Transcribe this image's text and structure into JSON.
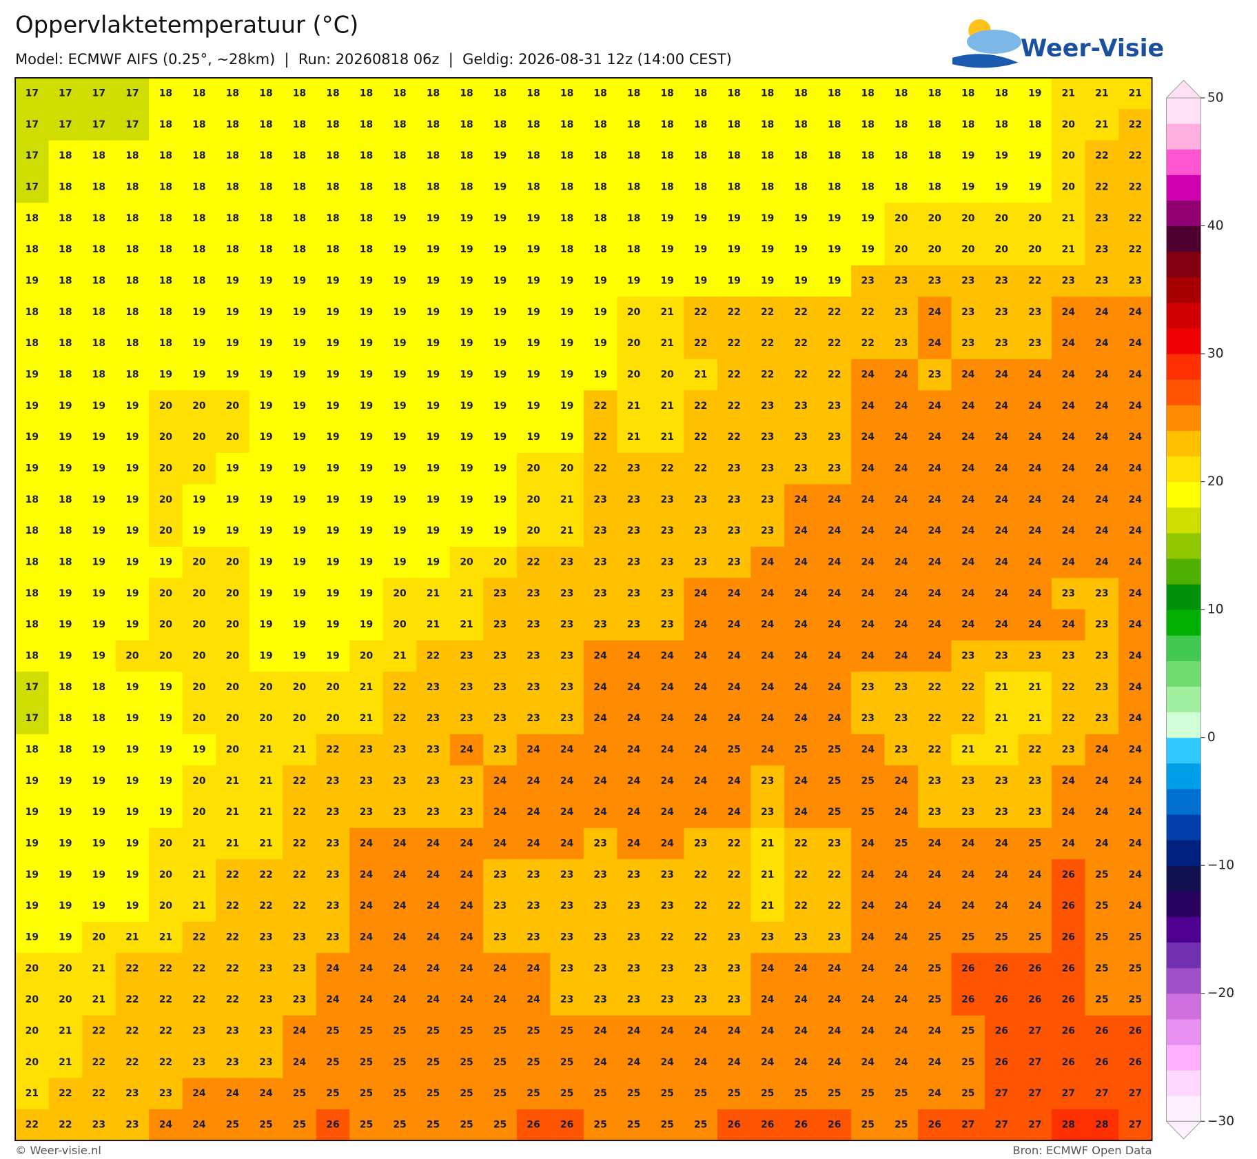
{
  "header": {
    "title": "Oppervlaktetemperatuur (°C)",
    "subtitle": "Model: ECMWF AIFS (0.25°, ~28km)  |  Run: 20260818 06z  |  Geldig: 2026-08-31 12z (14:00 CEST)"
  },
  "logo": {
    "text": "Weer-Visie"
  },
  "map": {
    "grid": [
      [
        17,
        17,
        17,
        17,
        18,
        18,
        18,
        18,
        18,
        18,
        18,
        18,
        18,
        18,
        18,
        18,
        18,
        18,
        18,
        18,
        18,
        18,
        18,
        18,
        18,
        18,
        18,
        18,
        18,
        18,
        19,
        21,
        21,
        21
      ],
      [
        17,
        17,
        17,
        17,
        18,
        18,
        18,
        18,
        18,
        18,
        18,
        18,
        18,
        18,
        18,
        18,
        18,
        18,
        18,
        18,
        18,
        18,
        18,
        18,
        18,
        18,
        18,
        18,
        18,
        18,
        18,
        20,
        21,
        22
      ],
      [
        17,
        18,
        18,
        18,
        18,
        18,
        18,
        18,
        18,
        18,
        18,
        18,
        18,
        18,
        19,
        18,
        18,
        18,
        18,
        18,
        18,
        18,
        18,
        18,
        18,
        18,
        18,
        18,
        19,
        19,
        19,
        20,
        22,
        22
      ],
      [
        17,
        18,
        18,
        18,
        18,
        18,
        18,
        18,
        18,
        18,
        18,
        18,
        18,
        18,
        19,
        18,
        18,
        18,
        18,
        18,
        18,
        18,
        18,
        18,
        18,
        18,
        18,
        18,
        19,
        19,
        19,
        20,
        22,
        22
      ],
      [
        18,
        18,
        18,
        18,
        18,
        18,
        18,
        18,
        18,
        18,
        18,
        19,
        19,
        19,
        19,
        19,
        18,
        18,
        18,
        19,
        19,
        19,
        19,
        19,
        19,
        19,
        20,
        20,
        20,
        20,
        20,
        21,
        23,
        22
      ],
      [
        18,
        18,
        18,
        18,
        18,
        18,
        18,
        18,
        18,
        18,
        18,
        19,
        19,
        19,
        19,
        19,
        18,
        18,
        18,
        19,
        19,
        19,
        19,
        19,
        19,
        19,
        20,
        20,
        20,
        20,
        20,
        21,
        23,
        22
      ],
      [
        19,
        18,
        18,
        18,
        18,
        18,
        19,
        19,
        19,
        19,
        19,
        19,
        19,
        19,
        19,
        19,
        19,
        19,
        19,
        19,
        19,
        19,
        19,
        19,
        19,
        23,
        23,
        23,
        23,
        23,
        22,
        23,
        23,
        23
      ],
      [
        18,
        18,
        18,
        18,
        18,
        19,
        19,
        19,
        19,
        19,
        19,
        19,
        19,
        19,
        19,
        19,
        19,
        19,
        20,
        21,
        22,
        22,
        22,
        22,
        22,
        22,
        23,
        24,
        23,
        23,
        23,
        24,
        24,
        24
      ],
      [
        18,
        18,
        18,
        18,
        18,
        19,
        19,
        19,
        19,
        19,
        19,
        19,
        19,
        19,
        19,
        19,
        19,
        19,
        20,
        21,
        22,
        22,
        22,
        22,
        22,
        22,
        23,
        24,
        23,
        23,
        23,
        24,
        24,
        24
      ],
      [
        19,
        18,
        18,
        18,
        19,
        19,
        19,
        19,
        19,
        19,
        19,
        19,
        19,
        19,
        19,
        19,
        19,
        19,
        20,
        20,
        21,
        22,
        22,
        22,
        22,
        24,
        24,
        23,
        24,
        24,
        24,
        24,
        24,
        24
      ],
      [
        19,
        19,
        19,
        19,
        20,
        20,
        20,
        19,
        19,
        19,
        19,
        19,
        19,
        19,
        19,
        19,
        19,
        22,
        21,
        21,
        22,
        22,
        23,
        23,
        23,
        24,
        24,
        24,
        24,
        24,
        24,
        24,
        24,
        24
      ],
      [
        19,
        19,
        19,
        19,
        20,
        20,
        20,
        19,
        19,
        19,
        19,
        19,
        19,
        19,
        19,
        19,
        19,
        22,
        21,
        21,
        22,
        22,
        23,
        23,
        23,
        24,
        24,
        24,
        24,
        24,
        24,
        24,
        24,
        24
      ],
      [
        19,
        19,
        19,
        19,
        20,
        20,
        19,
        19,
        19,
        19,
        19,
        19,
        19,
        19,
        19,
        20,
        20,
        22,
        23,
        22,
        22,
        23,
        23,
        23,
        23,
        24,
        24,
        24,
        24,
        24,
        24,
        24,
        24,
        24
      ],
      [
        18,
        18,
        19,
        19,
        20,
        19,
        19,
        19,
        19,
        19,
        19,
        19,
        19,
        19,
        19,
        20,
        21,
        23,
        23,
        23,
        23,
        23,
        23,
        24,
        24,
        24,
        24,
        24,
        24,
        24,
        24,
        24,
        24,
        24
      ],
      [
        18,
        18,
        19,
        19,
        20,
        19,
        19,
        19,
        19,
        19,
        19,
        19,
        19,
        19,
        19,
        20,
        21,
        23,
        23,
        23,
        23,
        23,
        23,
        24,
        24,
        24,
        24,
        24,
        24,
        24,
        24,
        24,
        24,
        24
      ],
      [
        18,
        18,
        19,
        19,
        19,
        20,
        20,
        19,
        19,
        19,
        19,
        19,
        19,
        20,
        20,
        22,
        23,
        23,
        23,
        23,
        23,
        23,
        24,
        24,
        24,
        24,
        24,
        24,
        24,
        24,
        24,
        24,
        24,
        24
      ],
      [
        18,
        19,
        19,
        19,
        20,
        20,
        20,
        19,
        19,
        19,
        19,
        20,
        21,
        21,
        23,
        23,
        23,
        23,
        23,
        23,
        24,
        24,
        24,
        24,
        24,
        24,
        24,
        24,
        24,
        24,
        24,
        23,
        23,
        24
      ],
      [
        18,
        19,
        19,
        19,
        20,
        20,
        20,
        19,
        19,
        19,
        19,
        20,
        21,
        21,
        23,
        23,
        23,
        23,
        23,
        23,
        24,
        24,
        24,
        24,
        24,
        24,
        24,
        24,
        24,
        24,
        24,
        24,
        23,
        24
      ],
      [
        18,
        19,
        19,
        20,
        20,
        20,
        20,
        19,
        19,
        19,
        20,
        21,
        22,
        23,
        23,
        23,
        23,
        24,
        24,
        24,
        24,
        24,
        24,
        24,
        24,
        24,
        24,
        24,
        23,
        23,
        23,
        23,
        23,
        24
      ],
      [
        17,
        18,
        18,
        19,
        19,
        20,
        20,
        20,
        20,
        20,
        21,
        22,
        23,
        23,
        23,
        23,
        23,
        24,
        24,
        24,
        24,
        24,
        24,
        24,
        24,
        23,
        23,
        22,
        22,
        21,
        21,
        22,
        23,
        24
      ],
      [
        17,
        18,
        18,
        19,
        19,
        20,
        20,
        20,
        20,
        20,
        21,
        22,
        23,
        23,
        23,
        23,
        23,
        24,
        24,
        24,
        24,
        24,
        24,
        24,
        24,
        23,
        23,
        22,
        22,
        21,
        21,
        22,
        23,
        24
      ],
      [
        18,
        18,
        19,
        19,
        19,
        19,
        20,
        21,
        21,
        22,
        23,
        23,
        23,
        24,
        23,
        24,
        24,
        24,
        24,
        24,
        24,
        25,
        24,
        25,
        25,
        24,
        23,
        22,
        21,
        21,
        22,
        23,
        24,
        24
      ],
      [
        19,
        19,
        19,
        19,
        19,
        20,
        21,
        21,
        22,
        23,
        23,
        23,
        23,
        23,
        24,
        24,
        24,
        24,
        24,
        24,
        24,
        24,
        23,
        24,
        25,
        25,
        24,
        23,
        23,
        23,
        23,
        24,
        24,
        24
      ],
      [
        19,
        19,
        19,
        19,
        19,
        20,
        21,
        21,
        22,
        23,
        23,
        23,
        23,
        23,
        24,
        24,
        24,
        24,
        24,
        24,
        24,
        24,
        23,
        24,
        25,
        25,
        24,
        23,
        23,
        23,
        23,
        24,
        24,
        24
      ],
      [
        19,
        19,
        19,
        19,
        20,
        21,
        21,
        21,
        22,
        23,
        24,
        24,
        24,
        24,
        24,
        24,
        24,
        23,
        24,
        24,
        23,
        22,
        21,
        22,
        23,
        24,
        25,
        24,
        24,
        24,
        25,
        24,
        24,
        24
      ],
      [
        19,
        19,
        19,
        19,
        20,
        21,
        22,
        22,
        22,
        23,
        24,
        24,
        24,
        24,
        23,
        23,
        23,
        23,
        23,
        23,
        22,
        22,
        21,
        22,
        22,
        24,
        24,
        24,
        24,
        24,
        24,
        26,
        25,
        24
      ],
      [
        19,
        19,
        19,
        19,
        20,
        21,
        22,
        22,
        22,
        23,
        24,
        24,
        24,
        24,
        23,
        23,
        23,
        23,
        23,
        23,
        22,
        22,
        21,
        22,
        22,
        24,
        24,
        24,
        24,
        24,
        24,
        26,
        25,
        24
      ],
      [
        19,
        19,
        20,
        21,
        21,
        22,
        22,
        23,
        23,
        23,
        24,
        24,
        24,
        24,
        23,
        23,
        23,
        23,
        23,
        22,
        22,
        23,
        23,
        23,
        23,
        24,
        24,
        25,
        25,
        25,
        25,
        26,
        25,
        25
      ],
      [
        20,
        20,
        21,
        22,
        22,
        22,
        22,
        23,
        23,
        24,
        24,
        24,
        24,
        24,
        24,
        24,
        23,
        23,
        23,
        23,
        23,
        23,
        24,
        24,
        24,
        24,
        24,
        25,
        26,
        26,
        26,
        26,
        25,
        25
      ],
      [
        20,
        20,
        21,
        22,
        22,
        22,
        22,
        23,
        23,
        24,
        24,
        24,
        24,
        24,
        24,
        24,
        23,
        23,
        23,
        23,
        23,
        23,
        24,
        24,
        24,
        24,
        24,
        25,
        26,
        26,
        26,
        26,
        25,
        25
      ],
      [
        20,
        21,
        22,
        22,
        22,
        23,
        23,
        23,
        24,
        25,
        25,
        25,
        25,
        25,
        25,
        25,
        25,
        24,
        24,
        24,
        24,
        24,
        24,
        24,
        24,
        24,
        24,
        24,
        25,
        26,
        27,
        26,
        26,
        26
      ],
      [
        20,
        21,
        22,
        22,
        22,
        23,
        23,
        23,
        24,
        25,
        25,
        25,
        25,
        25,
        25,
        25,
        25,
        24,
        24,
        24,
        24,
        24,
        24,
        24,
        24,
        24,
        24,
        24,
        25,
        26,
        27,
        26,
        26,
        26
      ],
      [
        21,
        22,
        22,
        23,
        23,
        24,
        24,
        24,
        25,
        25,
        25,
        25,
        25,
        25,
        25,
        25,
        25,
        25,
        25,
        25,
        25,
        25,
        25,
        25,
        25,
        25,
        25,
        24,
        25,
        27,
        27,
        27,
        27,
        27
      ],
      [
        22,
        22,
        23,
        23,
        24,
        24,
        25,
        25,
        25,
        26,
        25,
        25,
        25,
        25,
        25,
        26,
        26,
        25,
        25,
        25,
        25,
        26,
        26,
        26,
        26,
        25,
        25,
        26,
        27,
        27,
        27,
        28,
        28,
        27
      ]
    ]
  },
  "colorbar": {
    "lim": [
      -30,
      50
    ],
    "ticks": [
      50,
      40,
      30,
      20,
      10,
      0,
      {
        "value": -10,
        "label": "−10"
      },
      {
        "value": -20,
        "label": "−20"
      },
      {
        "value": -30,
        "label": "−30"
      }
    ],
    "colors": [
      "#fff0ff",
      "#ffd8ff",
      "#ffb0ff",
      "#e890f0",
      "#d070e0",
      "#a050c8",
      "#7030b0",
      "#500090",
      "#280060",
      "#101050",
      "#002080",
      "#0040a8",
      "#0070d0",
      "#00a0e8",
      "#30c8ff",
      "#d0ffd8",
      "#a0f0a0",
      "#70dc70",
      "#40c850",
      "#00b000",
      "#00900a",
      "#50b000",
      "#90c800",
      "#d0dd00",
      "#ffff00",
      "#ffe000",
      "#ffc000",
      "#ff8c00",
      "#ff5500",
      "#ff3000",
      "#f00000",
      "#d00000",
      "#a80000",
      "#800010",
      "#500030",
      "#900070",
      "#d000b0",
      "#ff55d0",
      "#ffb0e0",
      "#ffe0f5"
    ]
  },
  "footer": {
    "left": "© Weer-visie.nl",
    "right": "Bron: ECMWF Open Data"
  }
}
